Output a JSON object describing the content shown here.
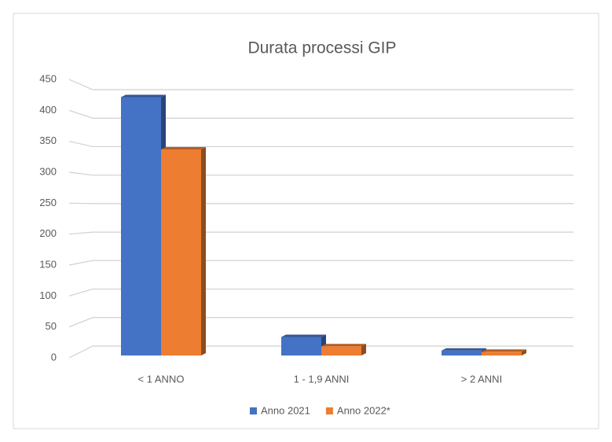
{
  "chart_data": {
    "type": "bar",
    "title": "Durata processi GIP",
    "categories": [
      "< 1 ANNO",
      "1 - 1,9 ANNI",
      "> 2 ANNI"
    ],
    "series": [
      {
        "name": "Anno 2021",
        "color": "#4472c4",
        "values": [
          420,
          30,
          8
        ]
      },
      {
        "name": "Anno 2022*",
        "color": "#ed7d31",
        "values": [
          335,
          15,
          6
        ]
      }
    ],
    "ylim": [
      0,
      450
    ],
    "yticks": [
      0,
      50,
      100,
      150,
      200,
      250,
      300,
      350,
      400,
      450
    ],
    "grid": true,
    "legend": "bottom"
  }
}
